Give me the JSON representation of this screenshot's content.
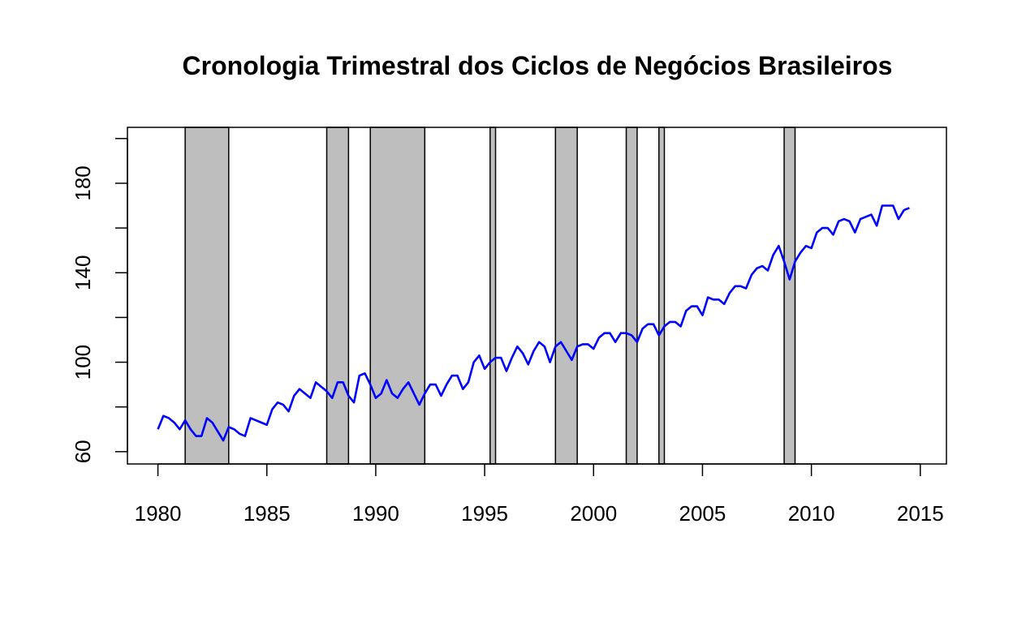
{
  "chart_data": {
    "type": "line",
    "title": "Cronologia Trimestral dos Ciclos de Negócios Brasileiros",
    "xlabel": "",
    "ylabel": "",
    "xlim": [
      1978.6,
      2016.2
    ],
    "ylim": [
      54.5,
      205
    ],
    "x_ticks": [
      "1980",
      "1985",
      "1990",
      "1995",
      "2000",
      "2005",
      "2010",
      "2015"
    ],
    "y_ticks": [
      "60",
      "100",
      "140",
      "180"
    ],
    "y_minor_ticks": [
      80,
      120,
      160,
      200
    ],
    "grid": false,
    "colors": {
      "line": "#0000ff",
      "recession": "#bebebe",
      "frame": "#000000"
    },
    "recessions": [
      [
        1981.25,
        1983.25
      ],
      [
        1987.75,
        1988.75
      ],
      [
        1989.75,
        1992.25
      ],
      [
        1995.25,
        1995.5
      ],
      [
        1998.25,
        1999.25
      ],
      [
        2001.5,
        2002.0
      ],
      [
        2003.0,
        2003.25
      ],
      [
        2008.75,
        2009.25
      ]
    ],
    "series": [
      {
        "start": 1980.0,
        "step": 0.25,
        "values": [
          70,
          76,
          75,
          73,
          70,
          74,
          70,
          67,
          67,
          75,
          73,
          69,
          65,
          71,
          70,
          68,
          67,
          75,
          74,
          73,
          72,
          79,
          82,
          81,
          78,
          85,
          88,
          86,
          84,
          91,
          89,
          87,
          84,
          91,
          91,
          85,
          82,
          94,
          95,
          90,
          84,
          86,
          92,
          86,
          84,
          88,
          91,
          86,
          81,
          86,
          90,
          90,
          85,
          90,
          94,
          94,
          88,
          91,
          100,
          103,
          97,
          100,
          102,
          102,
          96,
          102,
          107,
          104,
          99,
          105,
          109,
          107,
          100,
          107,
          109,
          105,
          101,
          107,
          108,
          108,
          106,
          111,
          113,
          113,
          109,
          113,
          113,
          112,
          109,
          115,
          117,
          117,
          112,
          116,
          118,
          118,
          116,
          123,
          125,
          125,
          121,
          129,
          128,
          128,
          126,
          131,
          134,
          134,
          133,
          139,
          142,
          143,
          141,
          148,
          152,
          145,
          137,
          145,
          149,
          152,
          151,
          158,
          160,
          160,
          157,
          163,
          164,
          163,
          158,
          164,
          165,
          166,
          161,
          170,
          170,
          170,
          164,
          168,
          169
        ]
      }
    ]
  }
}
